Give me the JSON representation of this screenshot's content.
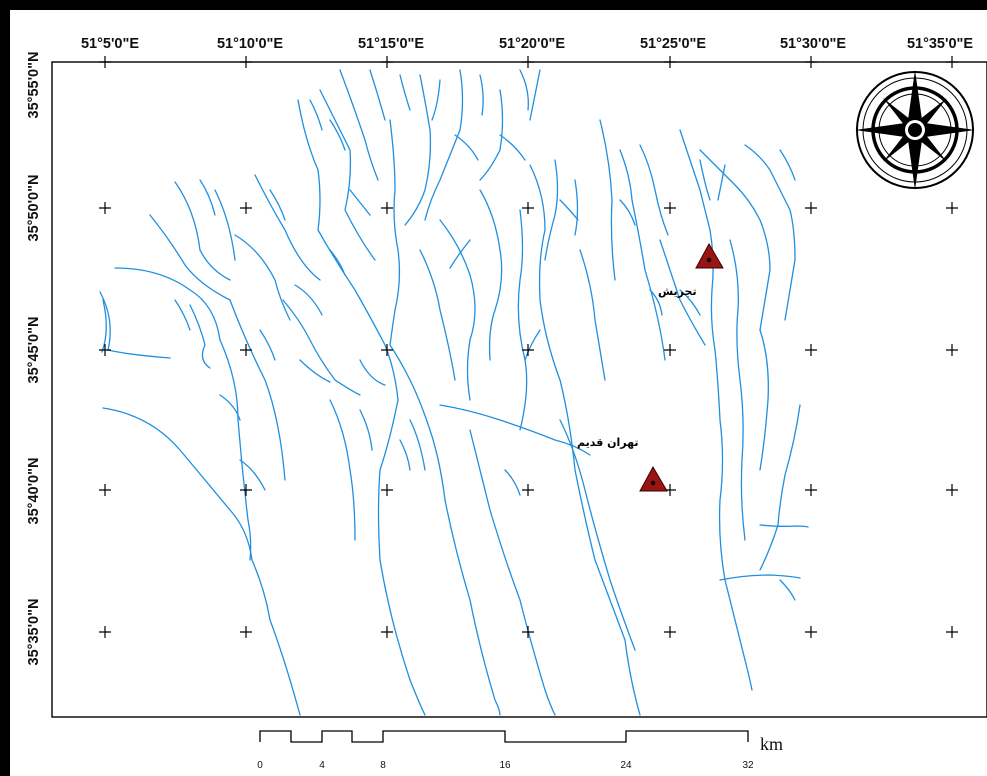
{
  "map": {
    "longitude_labels": [
      "51°5'0\"E",
      "51°10'0\"E",
      "51°15'0\"E",
      "51°20'0\"E",
      "51°25'0\"E",
      "51°30'0\"E",
      "51°35'0\"E"
    ],
    "latitude_labels": [
      "35°55'0\"N",
      "35°50'0\"N",
      "35°45'0\"N",
      "35°40'0\"N",
      "35°35'0\"N"
    ],
    "places": [
      {
        "name": "تجریش",
        "symbol": "red-triangle"
      },
      {
        "name": "تهران قدیم",
        "symbol": "red-triangle"
      }
    ],
    "scale_bar": {
      "ticks": [
        "0",
        "4",
        "8",
        "16",
        "24",
        "32"
      ],
      "unit": "km"
    },
    "colors": {
      "rivers": "#1f8fe0",
      "place_symbol": "#9b1414",
      "frame": "#000000"
    },
    "north_arrow_icon": "compass-rose-icon"
  }
}
